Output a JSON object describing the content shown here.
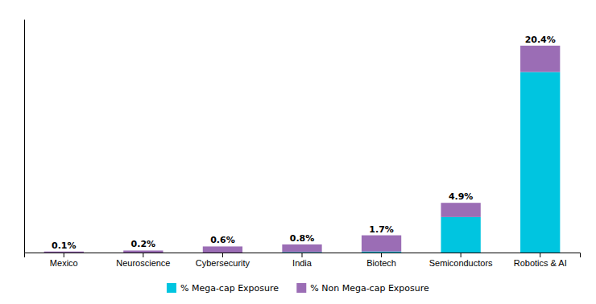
{
  "chart_data": {
    "type": "bar",
    "stacked": true,
    "categories": [
      "Mexico",
      "Neuroscience",
      "Cybersecurity",
      "India",
      "Biotech",
      "Semiconductors",
      "Robotics & AI"
    ],
    "series": [
      {
        "name": "% Mega-cap Exposure",
        "color": "#00C5E0",
        "values": [
          0.0,
          0.0,
          0.0,
          0.05,
          0.1,
          3.5,
          17.8
        ]
      },
      {
        "name": "% Non Mega-cap Exposure",
        "color": "#9B6DB5",
        "values": [
          0.1,
          0.2,
          0.6,
          0.75,
          1.6,
          1.4,
          2.6
        ]
      }
    ],
    "totals": [
      0.1,
      0.2,
      0.6,
      0.8,
      1.7,
      4.9,
      20.4
    ],
    "total_labels": [
      "0.1%",
      "0.2%",
      "0.6%",
      "0.8%",
      "1.7%",
      "4.9%",
      "20.4%"
    ],
    "ylim": [
      0,
      23
    ],
    "tick_labels": "x",
    "grid": false,
    "legend": "bottom"
  }
}
